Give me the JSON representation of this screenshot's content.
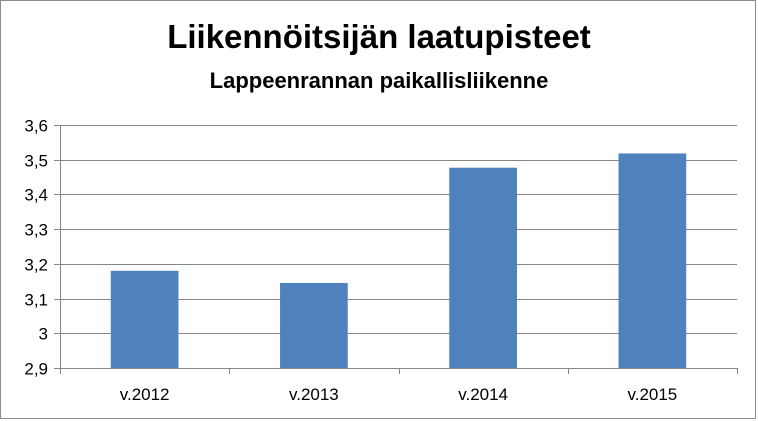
{
  "chart_data": {
    "type": "bar",
    "title": "Liikennöitsijän laatupisteet",
    "subtitle": "Lappeenrannan paikallisliikenne",
    "categories": [
      "v.2012",
      "v.2013",
      "v.2014",
      "v.2015"
    ],
    "values": [
      3.18,
      3.145,
      3.477,
      3.518
    ],
    "ylim": [
      2.9,
      3.6
    ],
    "yticks": [
      "2,9",
      "3",
      "3,1",
      "3,2",
      "3,3",
      "3,4",
      "3,5",
      "3,6"
    ],
    "ytick_values": [
      2.9,
      3.0,
      3.1,
      3.2,
      3.3,
      3.4,
      3.5,
      3.6
    ],
    "xlabel": "",
    "ylabel": "",
    "grid": true,
    "legend": "none",
    "colors": {
      "bar": "#4f81bd",
      "grid": "#868686",
      "axis": "#868686"
    }
  }
}
